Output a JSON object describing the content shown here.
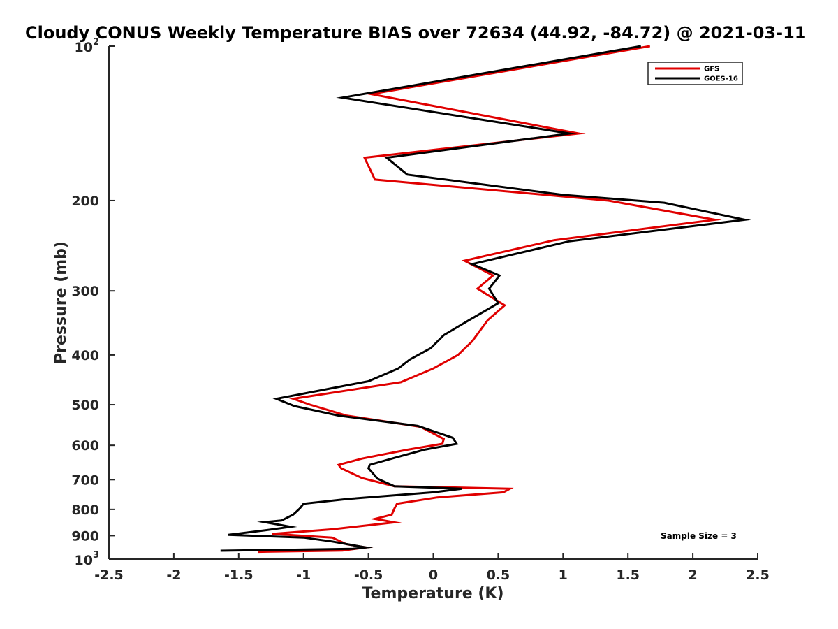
{
  "chart_data": {
    "type": "line",
    "title": "Cloudy CONUS Weekly Temperature BIAS over 72634 (44.92, -84.72) @ 2021-03-11",
    "xlabel": "Temperature (K)",
    "ylabel": "Pressure (mb)",
    "xlim": [
      -2.5,
      2.5
    ],
    "ylim": [
      100,
      1000
    ],
    "y_scale": "log",
    "y_reversed": true,
    "x_ticks": [
      "-2.5",
      "-2",
      "-1.5",
      "-1",
      "-0.5",
      "0",
      "0.5",
      "1",
      "1.5",
      "2",
      "2.5"
    ],
    "y_ticks": [
      {
        "value": 100,
        "label": "10",
        "sup": "2"
      },
      {
        "value": 200,
        "label": "200"
      },
      {
        "value": 300,
        "label": "300"
      },
      {
        "value": 400,
        "label": "400"
      },
      {
        "value": 500,
        "label": "500"
      },
      {
        "value": 600,
        "label": "600"
      },
      {
        "value": 700,
        "label": "700"
      },
      {
        "value": 800,
        "label": "800"
      },
      {
        "value": 900,
        "label": "900"
      },
      {
        "value": 1000,
        "label": "10",
        "sup": "3"
      }
    ],
    "grid": false,
    "legend_position": "top-right",
    "series": [
      {
        "name": "GFS",
        "color": "#e00000",
        "points": [
          [
            1.67,
            100
          ],
          [
            -0.48,
            124
          ],
          [
            1.12,
            148
          ],
          [
            -0.53,
            165
          ],
          [
            -0.45,
            182
          ],
          [
            1.35,
            200
          ],
          [
            2.17,
            218
          ],
          [
            0.93,
            239
          ],
          [
            0.24,
            262
          ],
          [
            0.46,
            280
          ],
          [
            0.34,
            297
          ],
          [
            0.55,
            320
          ],
          [
            0.42,
            342
          ],
          [
            0.3,
            376
          ],
          [
            0.19,
            400
          ],
          [
            0.0,
            425
          ],
          [
            -0.25,
            452
          ],
          [
            -1.08,
            487
          ],
          [
            -0.95,
            500
          ],
          [
            -0.67,
            525
          ],
          [
            -0.1,
            552
          ],
          [
            0.08,
            583
          ],
          [
            0.07,
            596
          ],
          [
            -0.2,
            612
          ],
          [
            -0.55,
            637
          ],
          [
            -0.73,
            655
          ],
          [
            -0.71,
            665
          ],
          [
            -0.55,
            695
          ],
          [
            -0.3,
            721
          ],
          [
            0.59,
            729
          ],
          [
            0.54,
            741
          ],
          [
            0.03,
            758
          ],
          [
            -0.28,
            780
          ],
          [
            -0.3,
            797
          ],
          [
            -0.32,
            819
          ],
          [
            -0.45,
            835
          ],
          [
            -0.3,
            848
          ],
          [
            -0.78,
            875
          ],
          [
            -1.24,
            893
          ],
          [
            -0.78,
            908
          ],
          [
            -0.67,
            935
          ],
          [
            -0.52,
            949
          ],
          [
            -0.7,
            962
          ],
          [
            -1.35,
            968
          ]
        ]
      },
      {
        "name": "GOES-16",
        "color": "#000000",
        "points": [
          [
            1.6,
            100
          ],
          [
            -0.7,
            126
          ],
          [
            1.05,
            148
          ],
          [
            -0.36,
            165
          ],
          [
            -0.2,
            178
          ],
          [
            1.0,
            195
          ],
          [
            1.78,
            202
          ],
          [
            2.4,
            218
          ],
          [
            1.05,
            240
          ],
          [
            0.3,
            266
          ],
          [
            0.51,
            280
          ],
          [
            0.43,
            297
          ],
          [
            0.5,
            317
          ],
          [
            0.25,
            345
          ],
          [
            0.08,
            366
          ],
          [
            -0.02,
            388
          ],
          [
            -0.18,
            408
          ],
          [
            -0.27,
            425
          ],
          [
            -0.5,
            450
          ],
          [
            -1.21,
            487
          ],
          [
            -1.07,
            503
          ],
          [
            -0.73,
            525
          ],
          [
            -0.12,
            550
          ],
          [
            0.15,
            580
          ],
          [
            0.18,
            596
          ],
          [
            -0.07,
            612
          ],
          [
            -0.3,
            635
          ],
          [
            -0.49,
            655
          ],
          [
            -0.5,
            665
          ],
          [
            -0.43,
            697
          ],
          [
            -0.3,
            721
          ],
          [
            0.22,
            729
          ],
          [
            0.0,
            741
          ],
          [
            -0.65,
            763
          ],
          [
            -1.0,
            780
          ],
          [
            -1.03,
            797
          ],
          [
            -1.08,
            819
          ],
          [
            -1.17,
            841
          ],
          [
            -1.3,
            847
          ],
          [
            -1.1,
            865
          ],
          [
            -1.3,
            879
          ],
          [
            -1.58,
            897
          ],
          [
            -1.0,
            908
          ],
          [
            -0.78,
            924
          ],
          [
            -0.52,
            949
          ],
          [
            -0.62,
            955
          ],
          [
            -1.64,
            963
          ]
        ]
      }
    ],
    "annotation": "Sample Size = 3"
  }
}
